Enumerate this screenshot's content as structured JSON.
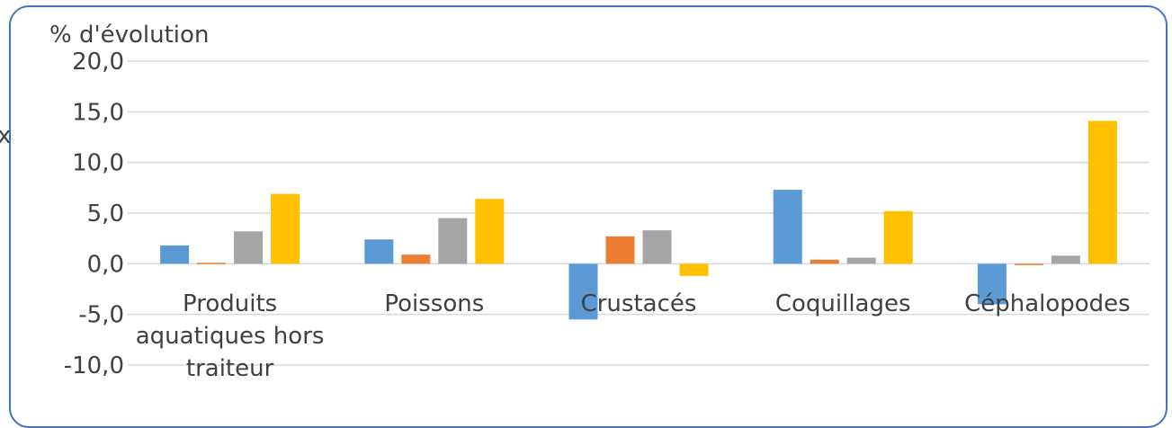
{
  "edge_glyph": "x",
  "chart_data": {
    "type": "bar",
    "title": "",
    "ylabel": "% d'évolution",
    "xlabel": "",
    "ylim": [
      -10,
      20
    ],
    "yticks": [
      "20,0",
      "15,0",
      "10,0",
      "5,0",
      "0,0",
      "-5,0",
      "-10,0"
    ],
    "ytick_values": [
      20,
      15,
      10,
      5,
      0,
      -5,
      -10
    ],
    "categories": [
      [
        "Produits",
        "aquatiques hors",
        "traiteur"
      ],
      [
        "Poissons"
      ],
      [
        "Crustacés"
      ],
      [
        "Coquillages"
      ],
      [
        "Céphalopodes"
      ]
    ],
    "series": [
      {
        "color": "#5B9BD5",
        "values": [
          1.8,
          2.4,
          -5.5,
          7.3,
          -4.0
        ]
      },
      {
        "color": "#ED7D31",
        "values": [
          0.1,
          0.9,
          2.7,
          0.4,
          -0.1
        ]
      },
      {
        "color": "#A5A5A5",
        "values": [
          3.2,
          4.5,
          3.3,
          0.6,
          0.8
        ]
      },
      {
        "color": "#FFC000",
        "values": [
          6.9,
          6.4,
          -1.2,
          5.2,
          14.1
        ]
      }
    ],
    "grid": true,
    "legend": "none"
  }
}
